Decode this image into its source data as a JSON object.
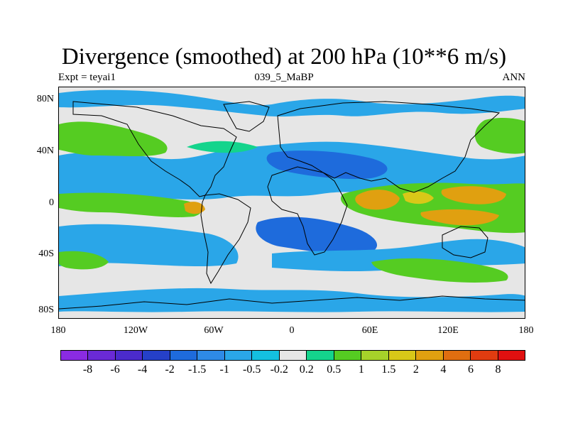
{
  "title": "Divergence (smoothed) at 200 hPa (10**6 m/s)",
  "subtitle_left": "Expt = teyai1",
  "subtitle_center": "039_5_MaBP",
  "subtitle_right": "ANN",
  "y_ticks": [
    {
      "label": "80N",
      "lat": 80
    },
    {
      "label": "40N",
      "lat": 40
    },
    {
      "label": "0",
      "lat": 0
    },
    {
      "label": "40S",
      "lat": -40
    },
    {
      "label": "80S",
      "lat": -80
    }
  ],
  "x_ticks": [
    {
      "label": "180",
      "lon": -180
    },
    {
      "label": "120W",
      "lon": -120
    },
    {
      "label": "60W",
      "lon": -60
    },
    {
      "label": "0",
      "lon": 0
    },
    {
      "label": "60E",
      "lon": 60
    },
    {
      "label": "120E",
      "lon": 120
    },
    {
      "label": "180",
      "lon": 180
    }
  ],
  "colorbar": {
    "colors": [
      "#8a2be2",
      "#6a2ad6",
      "#4b2bcc",
      "#2540c8",
      "#1e6bdc",
      "#2e8ae6",
      "#2aa6e8",
      "#14c0e0",
      "#e6e6e6",
      "#14d48c",
      "#55cc22",
      "#a6d22a",
      "#d8c818",
      "#e0a010",
      "#e06e10",
      "#e03c10",
      "#e01010"
    ],
    "labels": [
      "-8",
      "-6",
      "-4",
      "-2",
      "-1.5",
      "-1",
      "-0.5",
      "-0.2",
      "0.2",
      "0.5",
      "1",
      "1.5",
      "2",
      "4",
      "6",
      "8"
    ]
  }
}
